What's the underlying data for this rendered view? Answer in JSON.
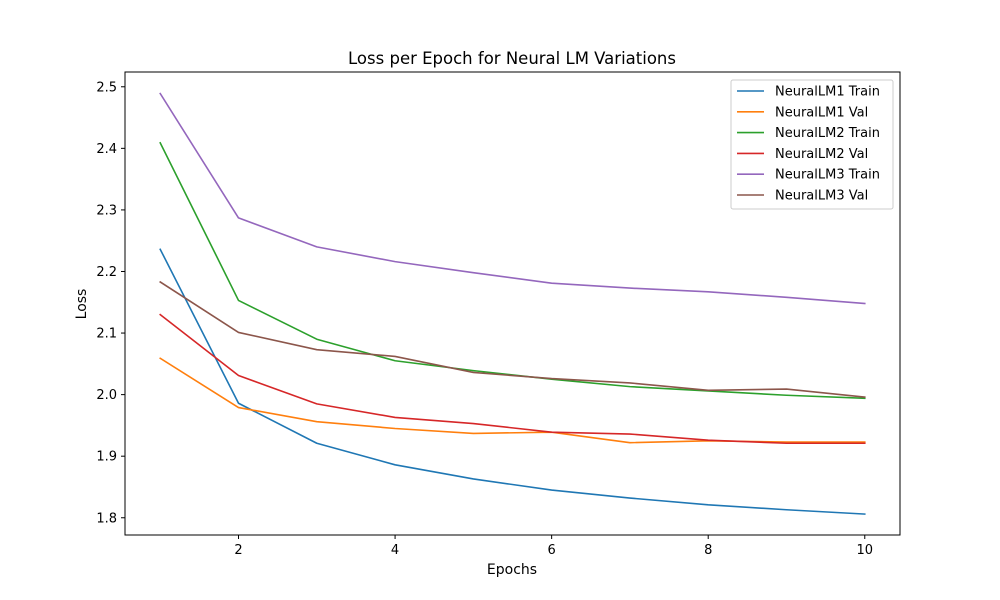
{
  "chart_data": {
    "type": "line",
    "title": "Loss per Epoch for Neural LM Variations",
    "xlabel": "Epochs",
    "ylabel": "Loss",
    "x": [
      1,
      2,
      3,
      4,
      5,
      6,
      7,
      8,
      9,
      10
    ],
    "xlim": [
      0.55,
      10.45
    ],
    "ylim": [
      1.772,
      2.524
    ],
    "xticks": [
      2,
      4,
      6,
      8,
      10
    ],
    "yticks": [
      1.8,
      1.9,
      2.0,
      2.1,
      2.2,
      2.3,
      2.4,
      2.5
    ],
    "ytick_labels": [
      "1.8",
      "1.9",
      "2.0",
      "2.1",
      "2.2",
      "2.3",
      "2.4",
      "2.5"
    ],
    "grid": false,
    "legend_position": "top-right",
    "series": [
      {
        "name": "NeuralLM1 Train",
        "color": "#1f77b4",
        "values": [
          2.236,
          1.986,
          1.921,
          1.886,
          1.863,
          1.845,
          1.832,
          1.821,
          1.813,
          1.806
        ]
      },
      {
        "name": "NeuralLM1 Val",
        "color": "#ff7f0e",
        "values": [
          2.059,
          1.979,
          1.956,
          1.945,
          1.937,
          1.939,
          1.922,
          1.925,
          1.923,
          1.923
        ]
      },
      {
        "name": "NeuralLM2 Train",
        "color": "#2ca02c",
        "values": [
          2.409,
          2.153,
          2.09,
          2.055,
          2.039,
          2.025,
          2.013,
          2.006,
          1.999,
          1.994
        ]
      },
      {
        "name": "NeuralLM2 Val",
        "color": "#d62728",
        "values": [
          2.13,
          2.031,
          1.985,
          1.963,
          1.953,
          1.939,
          1.936,
          1.926,
          1.921,
          1.921
        ]
      },
      {
        "name": "NeuralLM3 Train",
        "color": "#9467bd",
        "values": [
          2.489,
          2.287,
          2.24,
          2.216,
          2.198,
          2.181,
          2.173,
          2.167,
          2.158,
          2.148
        ]
      },
      {
        "name": "NeuralLM3 Val",
        "color": "#8c564b",
        "values": [
          2.183,
          2.101,
          2.073,
          2.062,
          2.036,
          2.026,
          2.019,
          2.007,
          2.009,
          1.996
        ]
      }
    ]
  }
}
